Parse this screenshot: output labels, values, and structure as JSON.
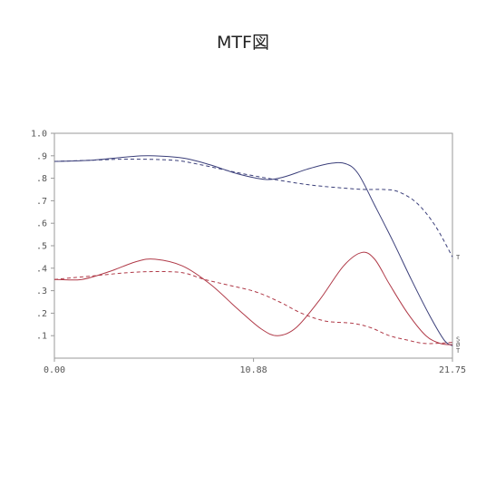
{
  "title": "MTF図",
  "chart_data": {
    "type": "line",
    "title": "MTF図",
    "xlabel": "",
    "ylabel": "",
    "xlim": [
      0,
      21.75
    ],
    "ylim": [
      0,
      1.0
    ],
    "x_tick_labels": [
      "0.00",
      "10.88",
      "21.75"
    ],
    "x_tick_values": [
      0,
      10.88,
      21.75
    ],
    "y_tick_labels": [
      ".1",
      ".2",
      ".3",
      ".4",
      ".5",
      ".6",
      ".7",
      ".8",
      ".9",
      "1.0"
    ],
    "y_tick_values": [
      0.1,
      0.2,
      0.3,
      0.4,
      0.5,
      0.6,
      0.7,
      0.8,
      0.9,
      1.0
    ],
    "grid": false,
    "end_labels": [
      {
        "text": "T",
        "y": 0.45,
        "color": "#555555"
      },
      {
        "text": "S",
        "y": 0.085,
        "color": "#c0392b"
      },
      {
        "text": "Ø",
        "y": 0.06,
        "color": "#555555"
      },
      {
        "text": "T",
        "y": 0.035,
        "color": "#c0392b"
      }
    ],
    "series": [
      {
        "style": "solid",
        "color": "#3b3f7a",
        "points": [
          [
            0,
            0.875
          ],
          [
            2,
            0.88
          ],
          [
            4,
            0.895
          ],
          [
            5.2,
            0.9
          ],
          [
            7,
            0.89
          ],
          [
            8.5,
            0.86
          ],
          [
            10,
            0.82
          ],
          [
            11.5,
            0.795
          ],
          [
            12.5,
            0.805
          ],
          [
            13.8,
            0.84
          ],
          [
            15,
            0.865
          ],
          [
            15.9,
            0.865
          ],
          [
            16.6,
            0.82
          ],
          [
            17.5,
            0.68
          ],
          [
            18.5,
            0.52
          ],
          [
            19.5,
            0.35
          ],
          [
            20.5,
            0.19
          ],
          [
            21.3,
            0.08
          ],
          [
            21.75,
            0.055
          ]
        ]
      },
      {
        "style": "dashed",
        "color": "#3b3f7a",
        "points": [
          [
            0,
            0.875
          ],
          [
            2,
            0.88
          ],
          [
            4,
            0.885
          ],
          [
            6.5,
            0.88
          ],
          [
            8,
            0.86
          ],
          [
            10,
            0.825
          ],
          [
            12,
            0.795
          ],
          [
            14,
            0.77
          ],
          [
            16,
            0.755
          ],
          [
            17,
            0.75
          ],
          [
            18,
            0.75
          ],
          [
            18.8,
            0.74
          ],
          [
            19.8,
            0.69
          ],
          [
            20.8,
            0.59
          ],
          [
            21.75,
            0.45
          ]
        ]
      },
      {
        "style": "solid",
        "color": "#b03a48",
        "points": [
          [
            0,
            0.35
          ],
          [
            1.5,
            0.35
          ],
          [
            3,
            0.385
          ],
          [
            4.5,
            0.43
          ],
          [
            5.5,
            0.44
          ],
          [
            7,
            0.41
          ],
          [
            8.5,
            0.33
          ],
          [
            10,
            0.22
          ],
          [
            11.3,
            0.13
          ],
          [
            12.2,
            0.1
          ],
          [
            13.2,
            0.135
          ],
          [
            14.5,
            0.26
          ],
          [
            15.8,
            0.41
          ],
          [
            16.8,
            0.47
          ],
          [
            17.5,
            0.44
          ],
          [
            18.3,
            0.33
          ],
          [
            19.3,
            0.2
          ],
          [
            20.3,
            0.1
          ],
          [
            21.1,
            0.065
          ],
          [
            21.75,
            0.06
          ]
        ]
      },
      {
        "style": "dashed",
        "color": "#b03a48",
        "points": [
          [
            0,
            0.35
          ],
          [
            2,
            0.365
          ],
          [
            4,
            0.38
          ],
          [
            5.5,
            0.385
          ],
          [
            7,
            0.38
          ],
          [
            8.2,
            0.35
          ],
          [
            9.5,
            0.325
          ],
          [
            11,
            0.295
          ],
          [
            12.3,
            0.25
          ],
          [
            13.5,
            0.2
          ],
          [
            14.8,
            0.165
          ],
          [
            16.3,
            0.155
          ],
          [
            17.3,
            0.135
          ],
          [
            18.3,
            0.1
          ],
          [
            19.3,
            0.08
          ],
          [
            20.3,
            0.065
          ],
          [
            21.75,
            0.07
          ]
        ]
      }
    ]
  }
}
